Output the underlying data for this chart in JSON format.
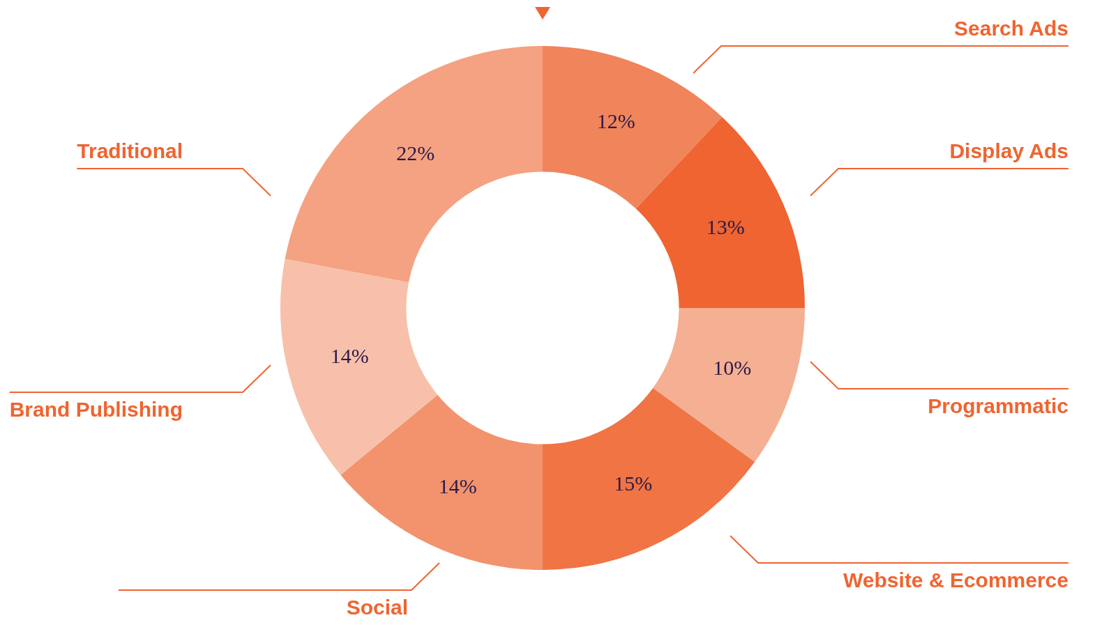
{
  "chart_data": {
    "type": "donut",
    "categories": [
      "Search Ads",
      "Display Ads",
      "Programmatic",
      "Website & Ecommerce",
      "Social",
      "Brand Publishing",
      "Traditional"
    ],
    "values": [
      12,
      13,
      10,
      15,
      14,
      14,
      22
    ],
    "colors": [
      "#f0845a",
      "#ef6430",
      "#f5af93",
      "#f07444",
      "#f2936d",
      "#f8c0aa",
      "#f4a281"
    ],
    "value_labels": [
      "12%",
      "13%",
      "10%",
      "15%",
      "14%",
      "14%",
      "22%"
    ],
    "legend": false
  }
}
